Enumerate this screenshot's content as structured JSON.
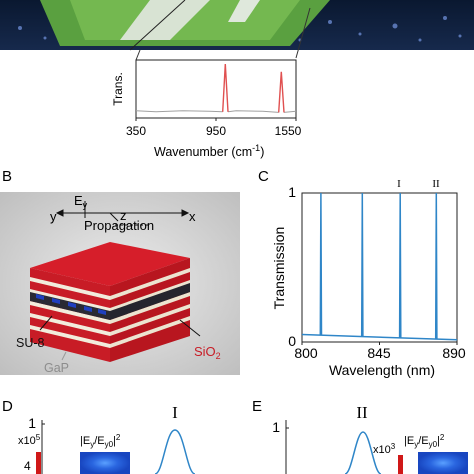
{
  "panelA": {
    "ylabel": "Trans.",
    "xlabel_main": "Wavenumber (cm",
    "xlabel_sup": "-1",
    "xlabel_end": ")",
    "xticks": [
      "350",
      "950",
      "1550"
    ]
  },
  "panelB": {
    "letter": "B",
    "axis_y": "y",
    "axis_z": "z",
    "axis_x": "x",
    "field_main": "E",
    "field_sub": "y",
    "propagation": "Propagation",
    "mat_su8": "SU-8",
    "mat_gap": "GaP",
    "mat_sio2_main": "SiO",
    "mat_sio2_sub": "2"
  },
  "panelC": {
    "letter": "C",
    "ylabel": "Transmission",
    "xlabel": "Wavelength (nm)",
    "yticks": [
      "0",
      "1"
    ],
    "xticks": [
      "800",
      "845",
      "890"
    ],
    "peak_labels": [
      "I",
      "II"
    ]
  },
  "panelD": {
    "letter": "D",
    "ytick_top": "1",
    "scale_exp_base": "x10",
    "scale_exp": "5",
    "scale_tick": "4",
    "field_label": "|E",
    "field_sub1": "y",
    "field_mid": "/E",
    "field_sub2": "y0",
    "field_end": "|",
    "field_sup": "2",
    "mode_label": "I"
  },
  "panelE": {
    "letter": "E",
    "ytick_top": "1",
    "scale_exp_base": "x10",
    "scale_exp": "3",
    "field_label": "|E",
    "field_sub1": "y",
    "field_mid": "/E",
    "field_sub2": "y0",
    "field_end": "|",
    "field_sup": "2",
    "mode_label": "II"
  },
  "chart_data": [
    {
      "type": "line",
      "panel": "A",
      "xlabel": "Wavenumber (cm-1)",
      "ylabel": "Trans.",
      "xlim": [
        350,
        1550
      ],
      "xticks": [
        350,
        950,
        1550
      ],
      "series": [
        {
          "x": [
            350,
            500,
            700,
            900,
            1000,
            1020,
            1040,
            1100,
            1300,
            1420,
            1440,
            1460,
            1550
          ],
          "y": [
            0.1,
            0.08,
            0.1,
            0.09,
            0.08,
            1.0,
            0.08,
            0.1,
            0.09,
            0.07,
            0.85,
            0.07,
            0.09
          ]
        }
      ]
    },
    {
      "type": "line",
      "panel": "C",
      "xlabel": "Wavelength (nm)",
      "ylabel": "Transmission",
      "xlim": [
        800,
        890
      ],
      "ylim": [
        0,
        1
      ],
      "peaks": [
        {
          "x": 811,
          "y": 1
        },
        {
          "x": 835,
          "y": 1
        },
        {
          "x": 857,
          "y": 1,
          "label": "I"
        },
        {
          "x": 878,
          "y": 1,
          "label": "II"
        }
      ],
      "baseline": [
        {
          "x": 800,
          "y": 0.05
        },
        {
          "x": 890,
          "y": 0.015
        }
      ]
    }
  ],
  "colors": {
    "panelA_peak": "#e05050",
    "panelA_base": "#a0a0a0",
    "panelC_line": "#2f86c8",
    "sio2_red": "#d0202a",
    "gap_stripe": "#f2ecdc",
    "field_blue": "#1f55d8",
    "scale_red": "#d01818"
  }
}
